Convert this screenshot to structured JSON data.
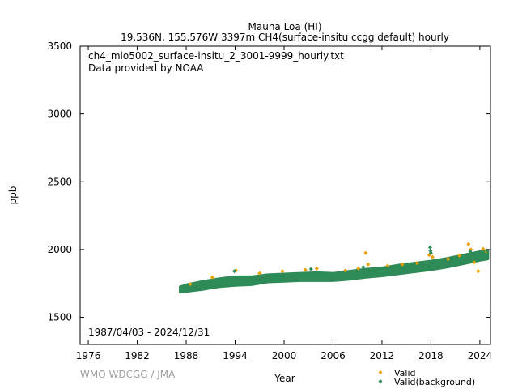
{
  "chart_data": {
    "type": "scatter",
    "title": "Mauna Loa (HI)",
    "subtitle": "19.536N, 155.576W 3397m    CH4(surface-insitu ccgg default) hourly",
    "file_label": "ch4_mlo5002_surface-insitu_2_3001-9999_hourly.txt",
    "provider_label": "Data provided by NOAA",
    "date_range": "1987/04/03 - 2024/12/31",
    "xlabel": "Year",
    "ylabel": "ppb",
    "credit": "WMO WDCGG / JMA",
    "xlim": [
      1975,
      2025.3
    ],
    "ylim": [
      1300,
      3500
    ],
    "x_ticks": [
      "1976",
      "1982",
      "1988",
      "1994",
      "2000",
      "2006",
      "2012",
      "2018",
      "2024"
    ],
    "y_ticks": [
      "1500",
      "2000",
      "2500",
      "3000",
      "3500"
    ],
    "legend_position": "bottom-right",
    "series": [
      {
        "name": "Valid",
        "color": "#e6a000",
        "marker": "diamond",
        "points": [
          [
            1988.5,
            1745
          ],
          [
            1991.2,
            1795
          ],
          [
            1994.1,
            1845
          ],
          [
            1997.0,
            1825
          ],
          [
            1999.8,
            1840
          ],
          [
            2002.6,
            1850
          ],
          [
            2004.0,
            1860
          ],
          [
            2007.5,
            1845
          ],
          [
            2009.1,
            1860
          ],
          [
            2010.0,
            1975
          ],
          [
            2010.3,
            1890
          ],
          [
            2012.7,
            1880
          ],
          [
            2014.5,
            1890
          ],
          [
            2016.3,
            1900
          ],
          [
            2017.8,
            1960
          ],
          [
            2018.2,
            1945
          ],
          [
            2020.1,
            1930
          ],
          [
            2021.5,
            1955
          ],
          [
            2022.6,
            2040
          ],
          [
            2022.9,
            2000
          ],
          [
            2023.3,
            1905
          ],
          [
            2023.8,
            1840
          ],
          [
            2024.4,
            2005
          ],
          [
            2024.8,
            1985
          ]
        ]
      },
      {
        "name": "Valid(background)",
        "color": "#2e8b57",
        "marker": "diamond",
        "band": [
          [
            1987.25,
            1685,
            1725
          ],
          [
            1988,
            1690,
            1740
          ],
          [
            1990,
            1705,
            1765
          ],
          [
            1992,
            1725,
            1785
          ],
          [
            1994,
            1735,
            1800
          ],
          [
            1996,
            1740,
            1800
          ],
          [
            1998,
            1760,
            1815
          ],
          [
            2000,
            1765,
            1820
          ],
          [
            2002,
            1770,
            1825
          ],
          [
            2004,
            1770,
            1830
          ],
          [
            2006,
            1770,
            1825
          ],
          [
            2008,
            1780,
            1840
          ],
          [
            2010,
            1795,
            1855
          ],
          [
            2012,
            1805,
            1865
          ],
          [
            2014,
            1820,
            1885
          ],
          [
            2016,
            1835,
            1900
          ],
          [
            2018,
            1850,
            1915
          ],
          [
            2020,
            1870,
            1935
          ],
          [
            2022,
            1895,
            1960
          ],
          [
            2024,
            1920,
            1985
          ],
          [
            2024.99,
            1930,
            1995
          ]
        ],
        "points": [
          [
            1993.9,
            1840
          ],
          [
            2003.3,
            1855
          ],
          [
            2009.7,
            1870
          ],
          [
            2017.9,
            2015
          ],
          [
            2017.95,
            1990
          ],
          [
            2018.0,
            1975
          ],
          [
            2022.8,
            1985
          ],
          [
            2024.9,
            1990
          ]
        ]
      }
    ]
  }
}
